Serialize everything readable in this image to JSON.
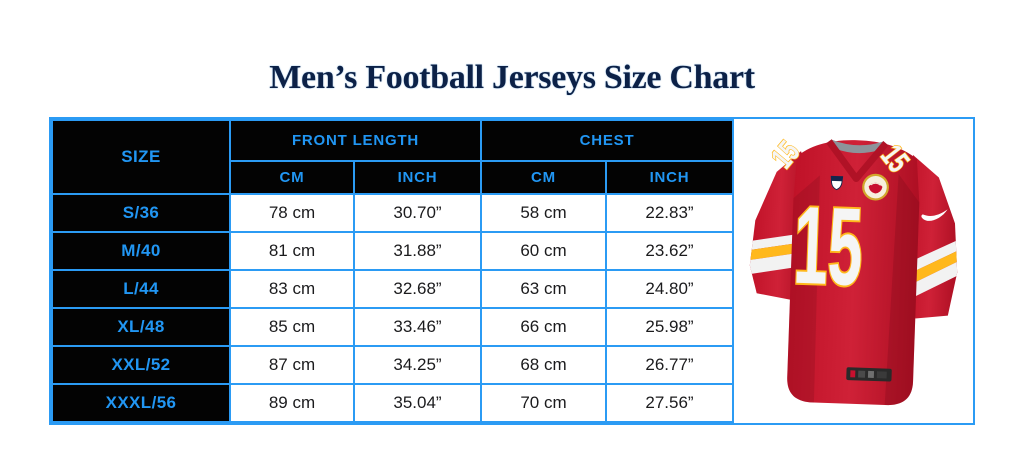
{
  "title": "Men’s Football Jerseys Size Chart",
  "colors": {
    "accent_blue": "#2196F3",
    "border_blue": "#2B9BF4",
    "header_bg": "#030303",
    "title_navy": "#0C2147",
    "jersey_red": "#C8102E",
    "jersey_gold": "#FFB81C"
  },
  "table": {
    "headers": {
      "size": "SIZE",
      "front_length": "FRONT LENGTH",
      "chest": "CHEST",
      "cm": "CM",
      "inch": "INCH"
    },
    "rows": [
      {
        "size": "S/36",
        "front_cm": "78 cm",
        "front_inch": "30.70”",
        "chest_cm": "58 cm",
        "chest_inch": "22.83”"
      },
      {
        "size": "M/40",
        "front_cm": "81 cm",
        "front_inch": "31.88”",
        "chest_cm": "60 cm",
        "chest_inch": "23.62”"
      },
      {
        "size": "L/44",
        "front_cm": "83 cm",
        "front_inch": "32.68”",
        "chest_cm": "63 cm",
        "chest_inch": "24.80”"
      },
      {
        "size": "XL/48",
        "front_cm": "85 cm",
        "front_inch": "33.46”",
        "chest_cm": "66 cm",
        "chest_inch": "25.98”"
      },
      {
        "size": "XXL/52",
        "front_cm": "87 cm",
        "front_inch": "34.25”",
        "chest_cm": "68 cm",
        "chest_inch": "26.77”"
      },
      {
        "size": "XXXL/56",
        "front_cm": "89 cm",
        "front_inch": "35.04”",
        "chest_cm": "70 cm",
        "chest_inch": "27.56”"
      }
    ]
  },
  "jersey": {
    "number": "15"
  },
  "chart_data": {
    "type": "table",
    "title": "Men’s Football Jerseys Size Chart",
    "column_groups": [
      "FRONT LENGTH",
      "CHEST"
    ],
    "columns": [
      "SIZE",
      "FRONT LENGTH CM",
      "FRONT LENGTH INCH",
      "CHEST CM",
      "CHEST INCH"
    ],
    "rows": [
      [
        "S/36",
        78,
        30.7,
        58,
        22.83
      ],
      [
        "M/40",
        81,
        31.88,
        60,
        23.62
      ],
      [
        "L/44",
        83,
        32.68,
        63,
        24.8
      ],
      [
        "XL/48",
        85,
        33.46,
        66,
        25.98
      ],
      [
        "XXL/52",
        87,
        34.25,
        68,
        26.77
      ],
      [
        "XXXL/56",
        89,
        35.04,
        70,
        27.56
      ]
    ]
  }
}
